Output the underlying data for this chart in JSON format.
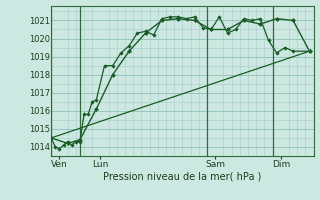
{
  "xlabel": "Pression niveau de la mer( hPa )",
  "ylim": [
    1013.5,
    1021.8
  ],
  "yticks": [
    1014,
    1015,
    1016,
    1017,
    1018,
    1019,
    1020,
    1021
  ],
  "background_color": "#cce8e0",
  "grid_color": "#a8cccc",
  "grid_color_major": "#8fbfb8",
  "line_color": "#1a5c28",
  "xlim": [
    0,
    64
  ],
  "xtick_positions": [
    2,
    12,
    40,
    56
  ],
  "xtick_labels": [
    "Ven",
    "Lun",
    "Sam",
    "Dim"
  ],
  "day_vlines": [
    0,
    7,
    38,
    54
  ],
  "series1_x": [
    0,
    1,
    2,
    3,
    4,
    5,
    6,
    7,
    8,
    9,
    10,
    11,
    13,
    15,
    17,
    19,
    21,
    23,
    25,
    27,
    29,
    31,
    33,
    35,
    37,
    39,
    41,
    43,
    45,
    47,
    49,
    51,
    53,
    55,
    57,
    59,
    63
  ],
  "series1_y": [
    1014.5,
    1014.0,
    1013.9,
    1014.1,
    1014.3,
    1014.1,
    1014.3,
    1014.3,
    1015.8,
    1015.8,
    1016.5,
    1016.6,
    1018.5,
    1018.5,
    1019.2,
    1019.6,
    1020.3,
    1020.4,
    1020.2,
    1021.1,
    1021.2,
    1021.2,
    1021.1,
    1021.2,
    1020.6,
    1020.5,
    1021.2,
    1020.3,
    1020.5,
    1021.1,
    1021.0,
    1021.1,
    1019.9,
    1019.2,
    1019.5,
    1019.3,
    1019.3
  ],
  "series2_x": [
    0,
    4,
    7,
    11,
    15,
    19,
    23,
    27,
    31,
    35,
    39,
    43,
    47,
    51,
    55,
    59,
    63
  ],
  "series2_y": [
    1014.5,
    1014.2,
    1014.4,
    1016.1,
    1018.0,
    1019.3,
    1020.3,
    1021.0,
    1021.1,
    1021.0,
    1020.5,
    1020.5,
    1021.0,
    1020.8,
    1021.1,
    1021.0,
    1019.3
  ],
  "series3_x": [
    0,
    63
  ],
  "series3_y": [
    1014.5,
    1019.3
  ]
}
